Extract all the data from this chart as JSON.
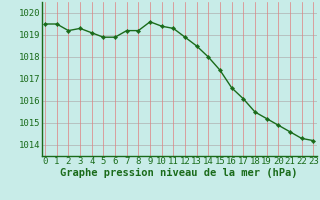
{
  "x": [
    0,
    1,
    2,
    3,
    4,
    5,
    6,
    7,
    8,
    9,
    10,
    11,
    12,
    13,
    14,
    15,
    16,
    17,
    18,
    19,
    20,
    21,
    22,
    23
  ],
  "y": [
    1019.5,
    1019.5,
    1019.2,
    1019.3,
    1019.1,
    1018.9,
    1018.9,
    1019.2,
    1019.2,
    1019.6,
    1019.4,
    1019.3,
    1018.9,
    1018.5,
    1018.0,
    1017.4,
    1016.6,
    1016.1,
    1015.5,
    1015.2,
    1014.9,
    1014.6,
    1014.3,
    1014.2
  ],
  "line_color": "#1a6b1a",
  "marker_color": "#1a6b1a",
  "bg_color": "#c8ece8",
  "grid_color_h": "#b0b0b0",
  "grid_color_v": "#e08080",
  "xlabel": "Graphe pression niveau de la mer (hPa)",
  "xlabel_color": "#1a6b1a",
  "xlabel_fontsize": 7.5,
  "tick_color": "#1a6b1a",
  "tick_fontsize": 6.5,
  "ylim": [
    1013.5,
    1020.5
  ],
  "yticks": [
    1014,
    1015,
    1016,
    1017,
    1018,
    1019,
    1020
  ],
  "xticks": [
    0,
    1,
    2,
    3,
    4,
    5,
    6,
    7,
    8,
    9,
    10,
    11,
    12,
    13,
    14,
    15,
    16,
    17,
    18,
    19,
    20,
    21,
    22,
    23
  ],
  "xlim": [
    -0.3,
    23.3
  ],
  "spine_color": "#1a6b1a"
}
